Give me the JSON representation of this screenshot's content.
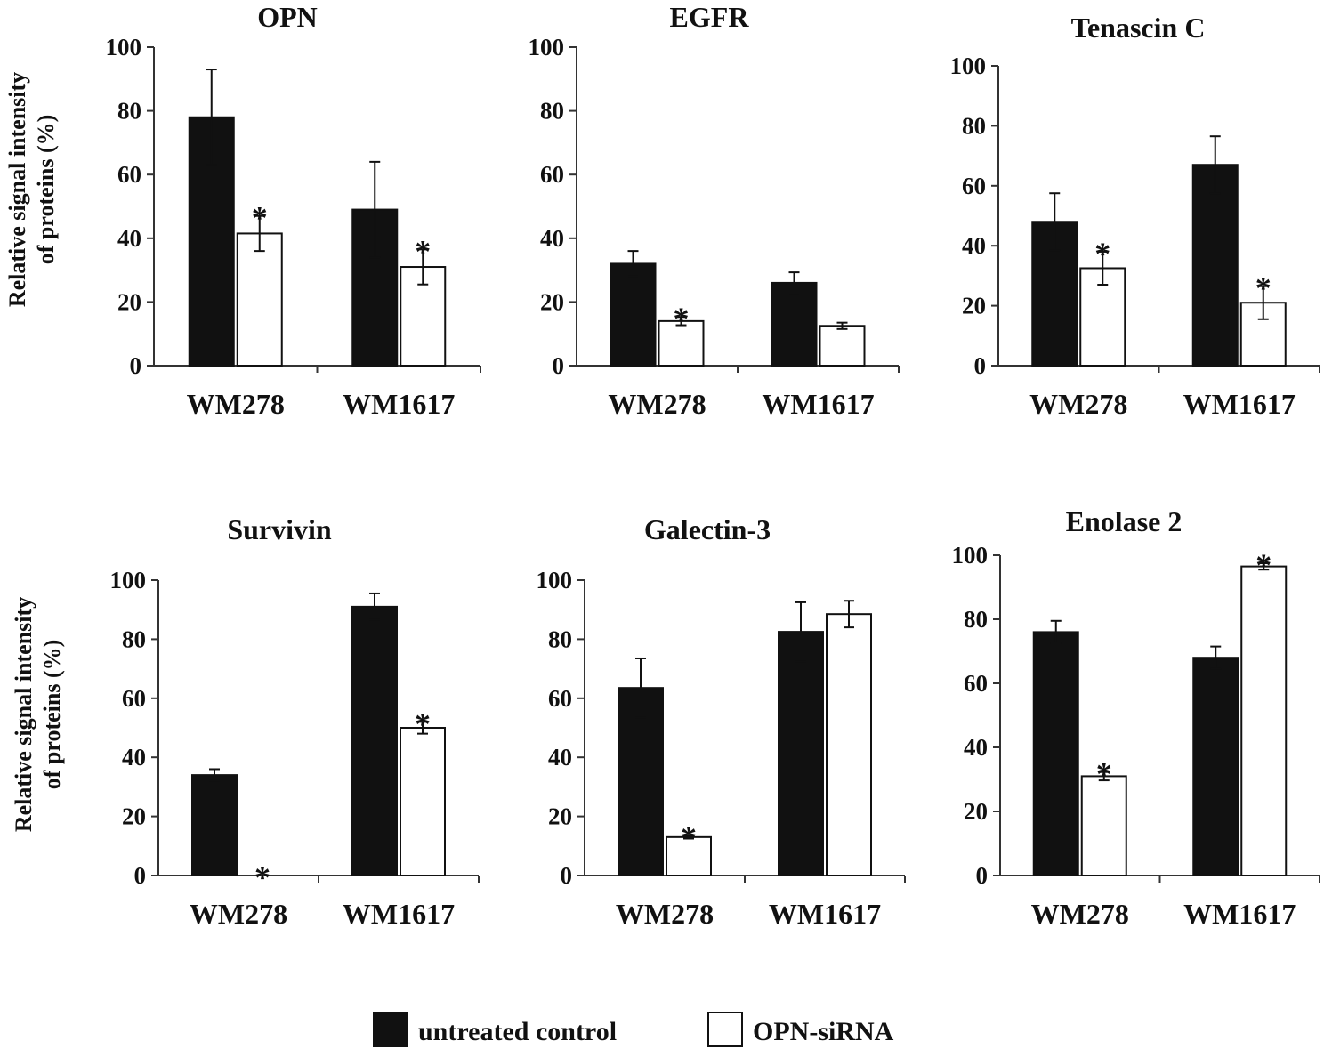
{
  "colors": {
    "control": "#111111",
    "sirna": "#ffffff",
    "axis": "#333333"
  },
  "legend": [
    {
      "label": "untreated control",
      "color": "#111111"
    },
    {
      "label": "OPN-siRNA",
      "color": "#ffffff"
    }
  ],
  "ylabel": {
    "line1": "Relative signal intensity",
    "line2": "of proteins (%)"
  },
  "chart_data": [
    {
      "type": "bar",
      "title": "OPN",
      "categories": [
        "WM278",
        "WM1617"
      ],
      "ylim": [
        0,
        100
      ],
      "yticks": [
        "0",
        "20",
        "40",
        "60",
        "80",
        "100"
      ],
      "series": [
        {
          "name": "untreated control",
          "values": [
            78,
            49
          ],
          "errors": [
            15,
            15
          ]
        },
        {
          "name": "OPN-siRNA",
          "values": [
            41.5,
            31
          ],
          "errors": [
            5.5,
            5.5
          ]
        }
      ],
      "significance": [
        [
          false,
          true
        ],
        [
          false,
          true
        ]
      ]
    },
    {
      "type": "bar",
      "title": "EGFR",
      "categories": [
        "WM278",
        "WM1617"
      ],
      "ylim": [
        0,
        100
      ],
      "yticks": [
        "0",
        "20",
        "40",
        "60",
        "80",
        "100"
      ],
      "series": [
        {
          "name": "untreated control",
          "values": [
            32,
            26
          ],
          "errors": [
            4,
            3.3
          ]
        },
        {
          "name": "OPN-siRNA",
          "values": [
            14,
            12.5
          ],
          "errors": [
            1.3,
            1
          ]
        }
      ],
      "significance": [
        [
          false,
          true
        ],
        [
          false,
          false
        ]
      ]
    },
    {
      "type": "bar",
      "title": "Tenascin  C",
      "categories": [
        "WM278",
        "WM1617"
      ],
      "ylim": [
        0,
        100
      ],
      "yticks": [
        "0",
        "20",
        "40",
        "60",
        "80",
        "100"
      ],
      "series": [
        {
          "name": "untreated control",
          "values": [
            48,
            67
          ],
          "errors": [
            9.5,
            9.5
          ]
        },
        {
          "name": "OPN-siRNA",
          "values": [
            32.5,
            21
          ],
          "errors": [
            5.5,
            5.5
          ]
        }
      ],
      "significance": [
        [
          false,
          true
        ],
        [
          false,
          true
        ]
      ]
    },
    {
      "type": "bar",
      "title": "Survivin",
      "categories": [
        "WM278",
        "WM1617"
      ],
      "ylim": [
        0,
        100
      ],
      "yticks": [
        "0",
        "20",
        "40",
        "60",
        "80",
        "100"
      ],
      "series": [
        {
          "name": "untreated control",
          "values": [
            34,
            91
          ],
          "errors": [
            2,
            4.5
          ]
        },
        {
          "name": "OPN-siRNA",
          "values": [
            0,
            50
          ],
          "errors": [
            0,
            2
          ]
        }
      ],
      "significance": [
        [
          false,
          true
        ],
        [
          false,
          true
        ]
      ]
    },
    {
      "type": "bar",
      "title": "Galectin-3",
      "categories": [
        "WM278",
        "WM1617"
      ],
      "ylim": [
        0,
        100
      ],
      "yticks": [
        "0",
        "20",
        "40",
        "60",
        "80",
        "100"
      ],
      "series": [
        {
          "name": "untreated control",
          "values": [
            63.5,
            82.5
          ],
          "errors": [
            10,
            10
          ]
        },
        {
          "name": "OPN-siRNA",
          "values": [
            13,
            88.5
          ],
          "errors": [
            0.5,
            4.5
          ]
        }
      ],
      "significance": [
        [
          false,
          true
        ],
        [
          false,
          false
        ]
      ]
    },
    {
      "type": "bar",
      "title": "Enolase 2",
      "categories": [
        "WM278",
        "WM1617"
      ],
      "ylim": [
        0,
        100
      ],
      "yticks": [
        "0",
        "20",
        "40",
        "60",
        "80",
        "100"
      ],
      "series": [
        {
          "name": "untreated control",
          "values": [
            76,
            68
          ],
          "errors": [
            3.5,
            3.5
          ]
        },
        {
          "name": "OPN-siRNA",
          "values": [
            31,
            96.5
          ],
          "errors": [
            1.3,
            1
          ]
        }
      ],
      "significance": [
        [
          false,
          true
        ],
        [
          false,
          true
        ]
      ]
    }
  ]
}
